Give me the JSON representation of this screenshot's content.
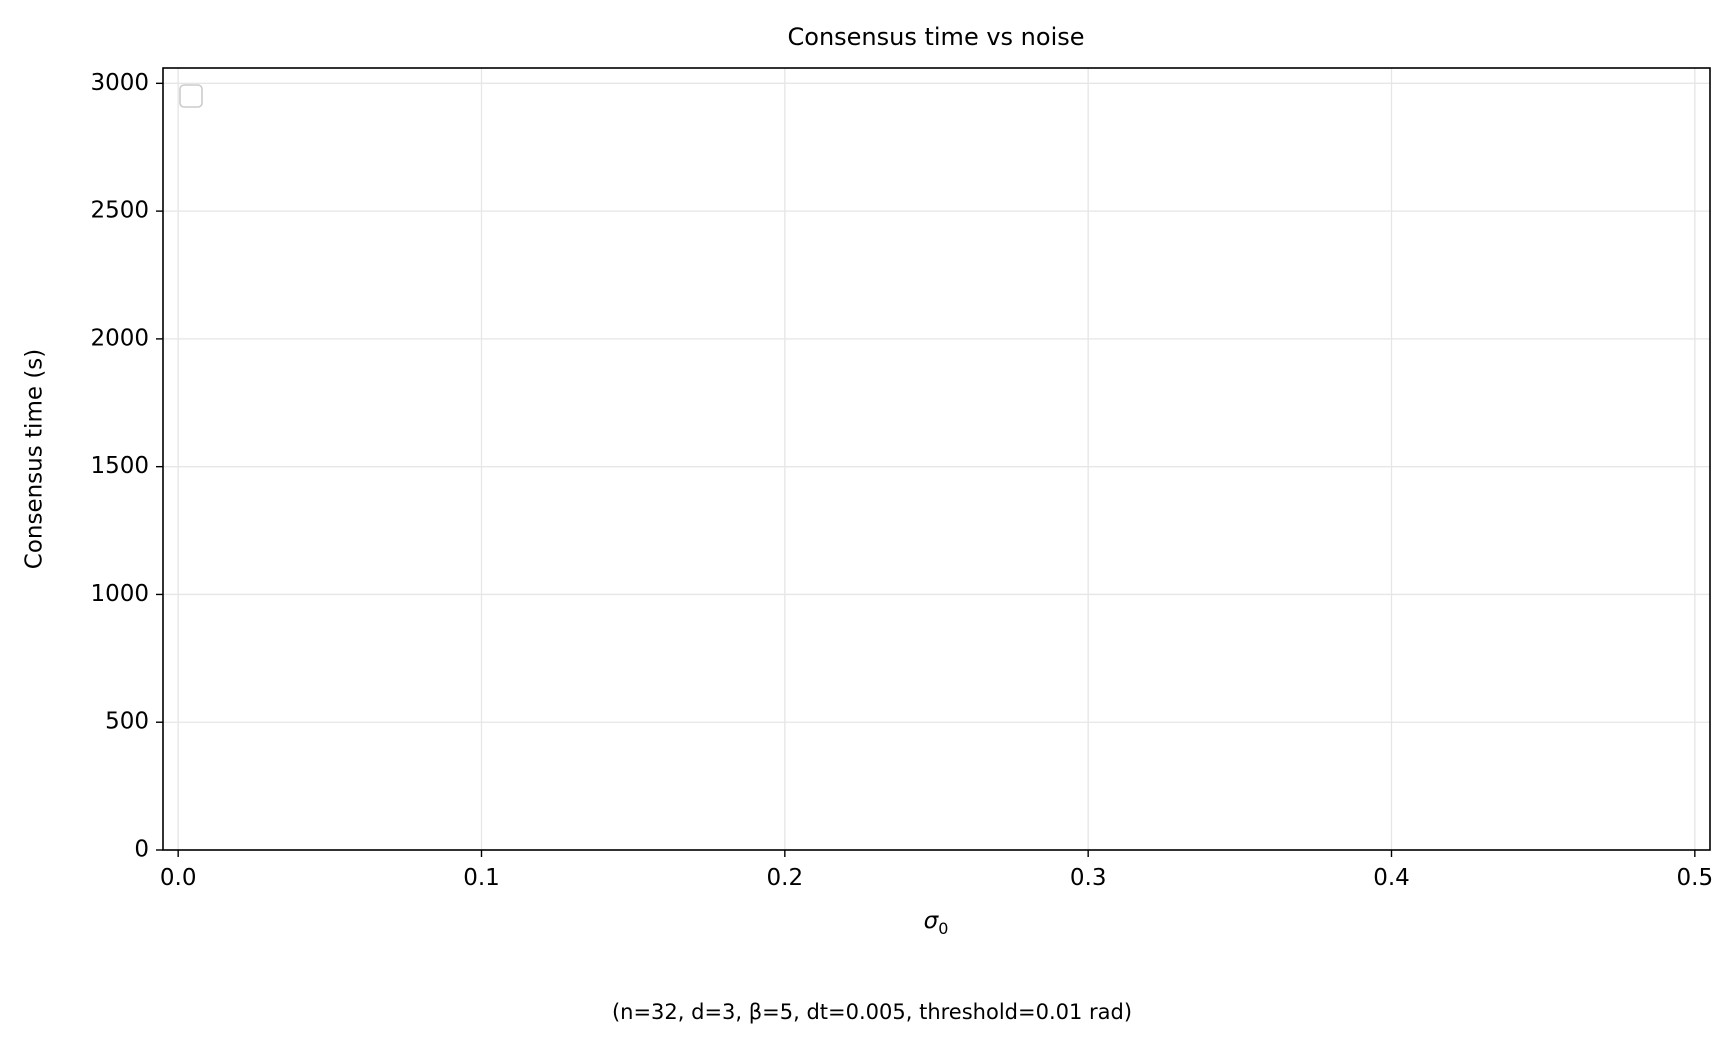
{
  "chart_data": {
    "type": "line",
    "title": "Consensus time vs noise",
    "xlabel": "σ",
    "xlabel_subscript": "0",
    "ylabel": "Consensus time (s)",
    "caption": "(n=32, d=3, β=5, dt=0.005, threshold=0.01 rad)",
    "xlim": [
      -0.005,
      0.505
    ],
    "ylim": [
      0,
      3060
    ],
    "xticks": [
      0.0,
      0.1,
      0.2,
      0.3,
      0.4,
      0.5
    ],
    "xtick_labels": [
      "0.0",
      "0.1",
      "0.2",
      "0.3",
      "0.4",
      "0.5"
    ],
    "yticks": [
      0,
      500,
      1000,
      1500,
      2000,
      2500,
      3000
    ],
    "ytick_labels": [
      "0",
      "500",
      "1000",
      "1500",
      "2000",
      "2500",
      "3000"
    ],
    "grid": true,
    "legend": "top-left, empty",
    "series": [],
    "colors": {
      "axes": "#000000",
      "grid": "#e6e6e6",
      "legend_border": "#cccccc"
    }
  }
}
